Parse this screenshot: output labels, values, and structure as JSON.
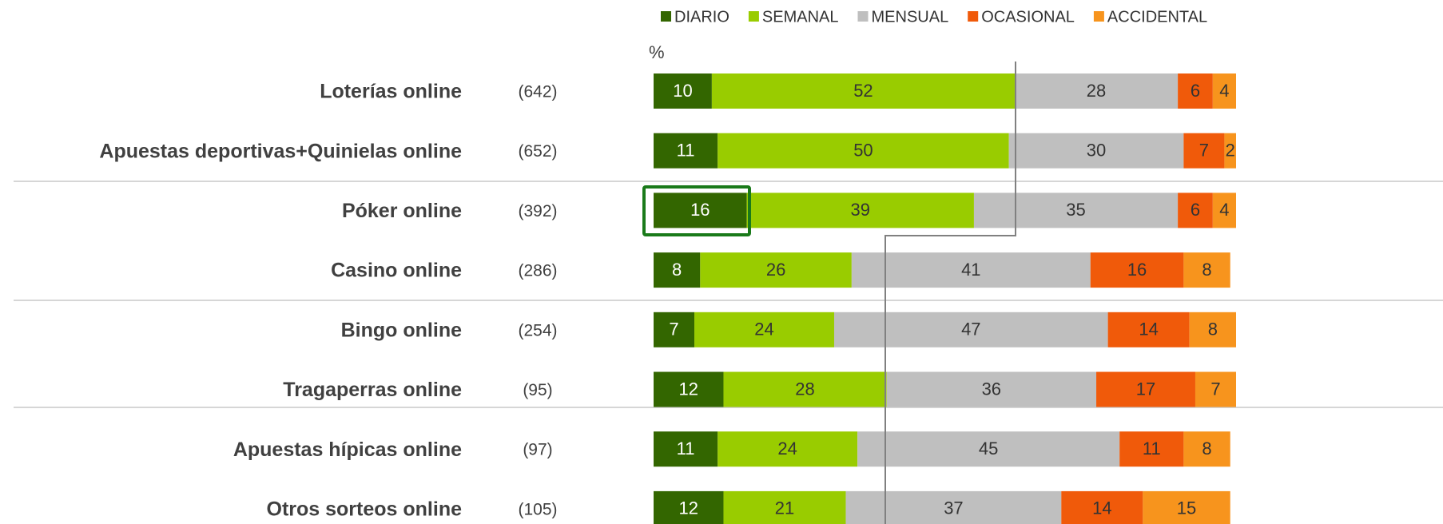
{
  "chart_data": {
    "type": "stacked-bar-horizontal",
    "axis_label": "%",
    "categories": [
      "Loterías online",
      "Apuestas deportivas+Quinielas online",
      "Póker online",
      "Casino online",
      "Bingo online",
      "Tragaperras online",
      "Apuestas hípicas online",
      "Otros sorteos online"
    ],
    "sample_sizes": [
      "(642)",
      "(652)",
      "(392)",
      "(286)",
      "(254)",
      "(95)",
      "(97)",
      "(105)"
    ],
    "xlim": [
      0,
      100
    ],
    "series": [
      {
        "name": "DIARIO",
        "color": "#336600",
        "values": [
          10,
          11,
          16,
          8,
          7,
          12,
          11,
          12
        ]
      },
      {
        "name": "SEMANAL",
        "color": "#99cc00",
        "values": [
          52,
          50,
          39,
          26,
          24,
          28,
          24,
          21
        ]
      },
      {
        "name": "MENSUAL",
        "color": "#bfbfbf",
        "values": [
          28,
          30,
          35,
          41,
          47,
          36,
          45,
          37
        ]
      },
      {
        "name": "OCASIONAL",
        "color": "#f05a0a",
        "values": [
          6,
          7,
          6,
          16,
          14,
          17,
          11,
          14
        ]
      },
      {
        "name": "ACCIDENTAL",
        "color": "#f7941d",
        "values": [
          4,
          2,
          4,
          8,
          8,
          7,
          8,
          15
        ]
      }
    ]
  }
}
